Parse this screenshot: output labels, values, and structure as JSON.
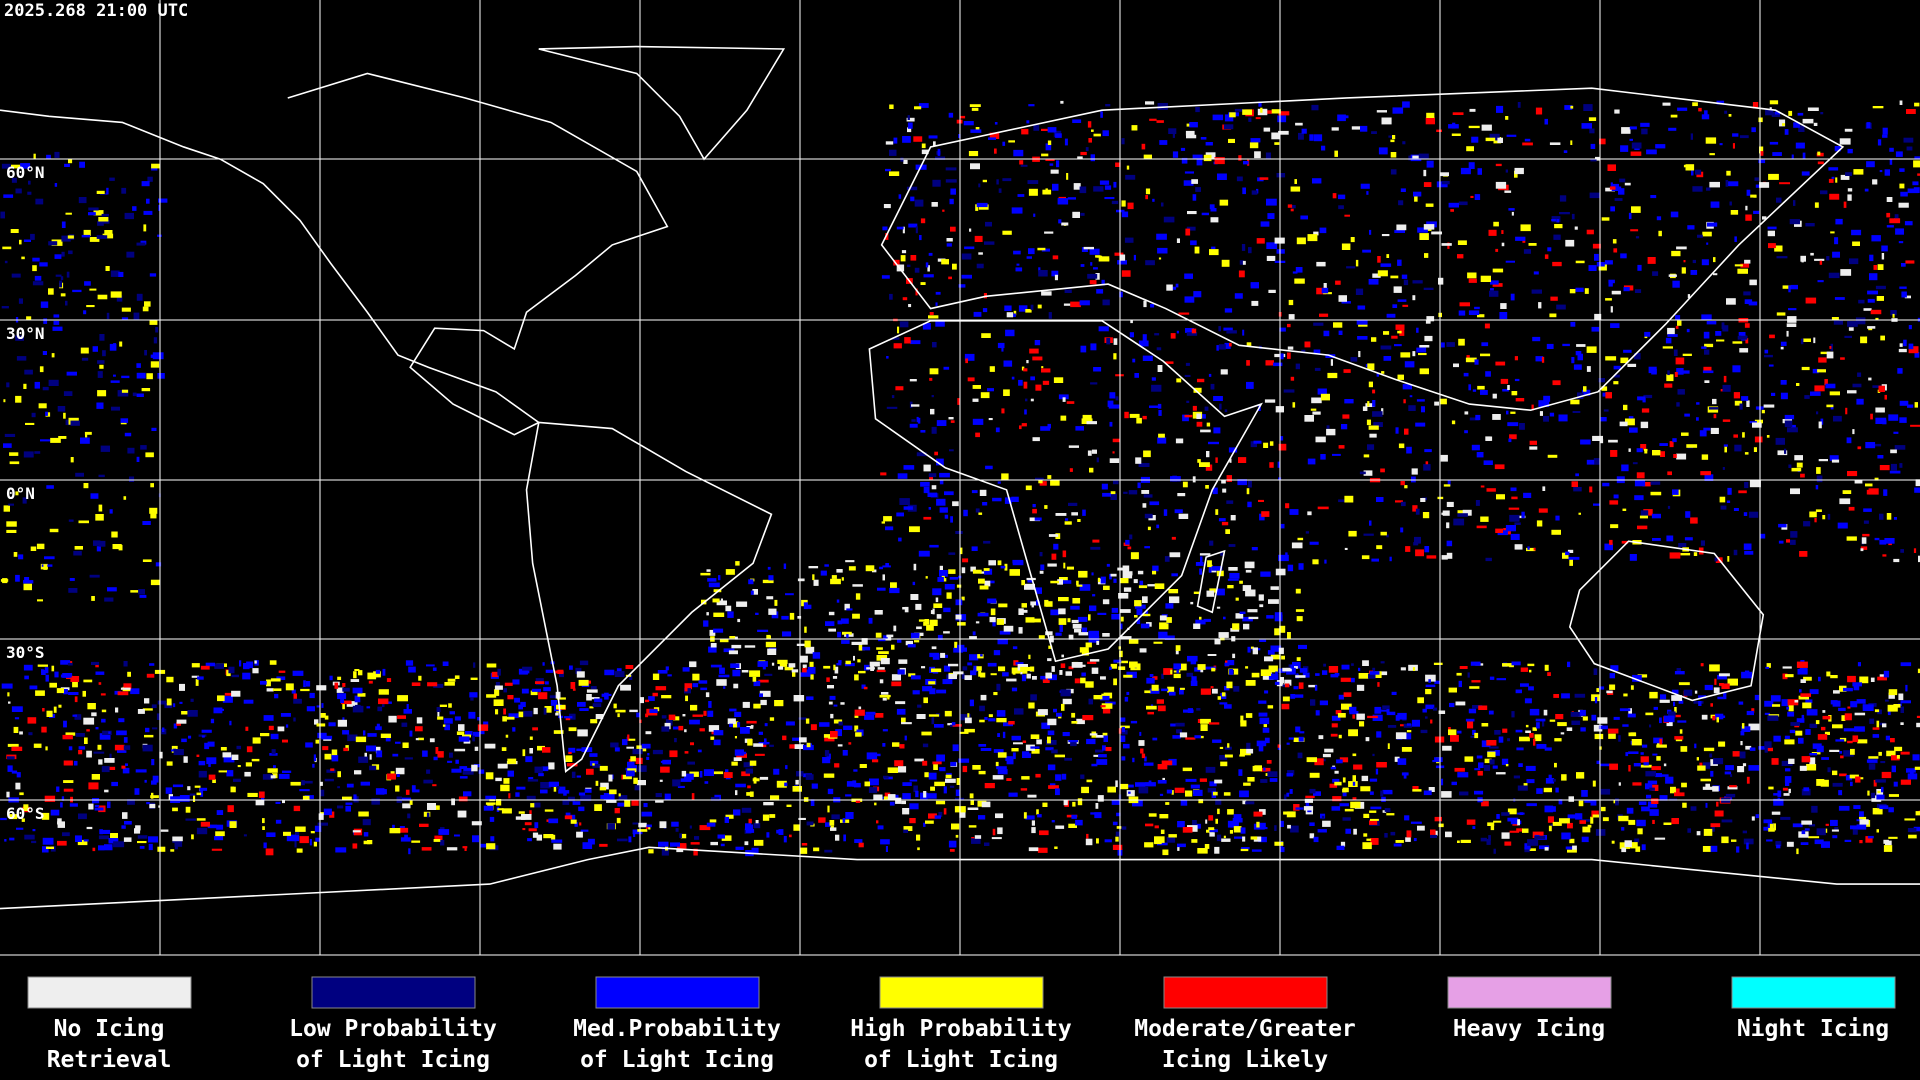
{
  "timestamp": "2025.268 21:00 UTC",
  "latitude_labels": [
    "60°N",
    "30°N",
    "0°N",
    "30°S",
    "60°S"
  ],
  "legend": [
    {
      "lines": [
        "No Icing",
        "Retrieval"
      ],
      "color": "#eeeeee"
    },
    {
      "lines": [
        "Low Probability",
        "of Light Icing"
      ],
      "color": "#000080"
    },
    {
      "lines": [
        "Med.Probability",
        "of Light Icing"
      ],
      "color": "#0000ff"
    },
    {
      "lines": [
        "High Probability",
        "of Light Icing"
      ],
      "color": "#ffff00"
    },
    {
      "lines": [
        "Moderate/Greater",
        "Icing Likely"
      ],
      "color": "#ff0000"
    },
    {
      "lines": [
        "Heavy Icing"
      ],
      "color": "#e6a0e6"
    },
    {
      "lines": [
        "Night Icing"
      ],
      "color": "#00ffff"
    }
  ]
}
